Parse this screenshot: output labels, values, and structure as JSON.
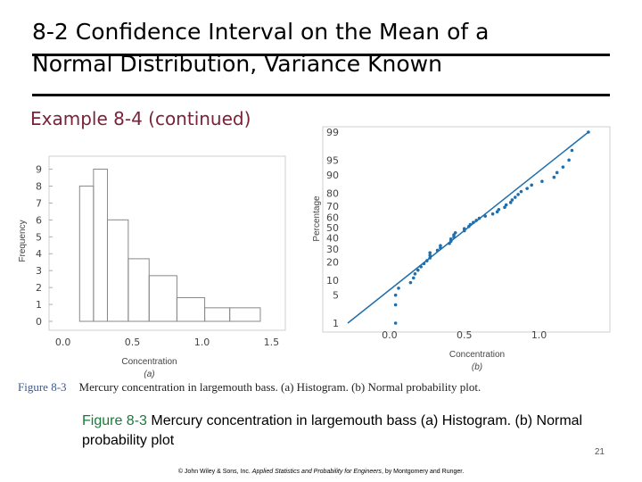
{
  "slide": {
    "title_line1": "8-2 Confidence Interval on the Mean of a",
    "title_line2": "Normal Distribution, Variance Known",
    "subtitle": "Example 8-4 (continued)",
    "figure_caption_label": "Figure 8-3",
    "figure_caption_text": "Mercury concentration in largemouth bass. (a) Histogram. (b) Normal probability plot.",
    "caption_label": "Figure 8-3",
    "caption_text": " Mercury concentration in largemouth bass (a) Histogram. (b) Normal probability plot",
    "page_number": "21",
    "footer_pre": "© John Wiley & Sons, Inc.  ",
    "footer_italic": "Applied Statistics and Probability for Engineers",
    "footer_post": ", by Montgomery and Runger."
  },
  "chart_data": [
    {
      "type": "bar",
      "xlabel": "Concentration",
      "ylabel": "Frequency",
      "sublabel": "(a)",
      "x_ticks": [
        "0.0",
        "0.5",
        "1.0",
        "1.5"
      ],
      "y_ticks": [
        "0",
        "1",
        "2",
        "3",
        "4",
        "5",
        "6",
        "7",
        "8",
        "9"
      ],
      "xlim": [
        -0.1,
        1.6
      ],
      "ylim": [
        0,
        9.5
      ],
      "bins": [
        {
          "x0": 0.12,
          "x1": 0.22,
          "value": 8
        },
        {
          "x0": 0.22,
          "x1": 0.32,
          "value": 9
        },
        {
          "x0": 0.32,
          "x1": 0.47,
          "value": 6
        },
        {
          "x0": 0.47,
          "x1": 0.62,
          "value": 3.7
        },
        {
          "x0": 0.62,
          "x1": 0.82,
          "value": 2.7
        },
        {
          "x0": 0.82,
          "x1": 1.02,
          "value": 1.4
        },
        {
          "x0": 1.02,
          "x1": 1.2,
          "value": 0.8
        },
        {
          "x0": 1.2,
          "x1": 1.42,
          "value": 0.8
        }
      ],
      "color": "#888888"
    },
    {
      "type": "scatter",
      "xlabel": "Concentration",
      "ylabel": "Percentage",
      "sublabel": "(b)",
      "x_ticks": [
        "0.0",
        "0.5",
        "1.0"
      ],
      "y_ticks": [
        "1",
        "5",
        "10",
        "20",
        "30",
        "40",
        "50",
        "60",
        "70",
        "80",
        "90",
        "95",
        "99"
      ],
      "xlim": [
        -0.28,
        1.45
      ],
      "points": [
        {
          "x": 0.04,
          "y": 1
        },
        {
          "x": 0.04,
          "y": 3
        },
        {
          "x": 0.04,
          "y": 5
        },
        {
          "x": 0.06,
          "y": 7
        },
        {
          "x": 0.14,
          "y": 9
        },
        {
          "x": 0.16,
          "y": 11
        },
        {
          "x": 0.17,
          "y": 13
        },
        {
          "x": 0.19,
          "y": 15
        },
        {
          "x": 0.21,
          "y": 17
        },
        {
          "x": 0.23,
          "y": 19
        },
        {
          "x": 0.25,
          "y": 21
        },
        {
          "x": 0.27,
          "y": 23
        },
        {
          "x": 0.27,
          "y": 25
        },
        {
          "x": 0.27,
          "y": 27
        },
        {
          "x": 0.32,
          "y": 29
        },
        {
          "x": 0.34,
          "y": 31
        },
        {
          "x": 0.34,
          "y": 33
        },
        {
          "x": 0.4,
          "y": 35
        },
        {
          "x": 0.41,
          "y": 37
        },
        {
          "x": 0.41,
          "y": 39
        },
        {
          "x": 0.43,
          "y": 41
        },
        {
          "x": 0.43,
          "y": 43
        },
        {
          "x": 0.44,
          "y": 45
        },
        {
          "x": 0.5,
          "y": 47
        },
        {
          "x": 0.5,
          "y": 49
        },
        {
          "x": 0.53,
          "y": 51
        },
        {
          "x": 0.54,
          "y": 53
        },
        {
          "x": 0.56,
          "y": 55
        },
        {
          "x": 0.58,
          "y": 57
        },
        {
          "x": 0.6,
          "y": 59
        },
        {
          "x": 0.64,
          "y": 61
        },
        {
          "x": 0.69,
          "y": 63
        },
        {
          "x": 0.72,
          "y": 65
        },
        {
          "x": 0.73,
          "y": 67
        },
        {
          "x": 0.77,
          "y": 69
        },
        {
          "x": 0.78,
          "y": 71
        },
        {
          "x": 0.81,
          "y": 73
        },
        {
          "x": 0.82,
          "y": 75
        },
        {
          "x": 0.84,
          "y": 77
        },
        {
          "x": 0.86,
          "y": 79
        },
        {
          "x": 0.88,
          "y": 81
        },
        {
          "x": 0.92,
          "y": 83
        },
        {
          "x": 0.95,
          "y": 85
        },
        {
          "x": 1.02,
          "y": 87
        },
        {
          "x": 1.1,
          "y": 89
        },
        {
          "x": 1.12,
          "y": 91
        },
        {
          "x": 1.16,
          "y": 93
        },
        {
          "x": 1.2,
          "y": 95
        },
        {
          "x": 1.22,
          "y": 97
        },
        {
          "x": 1.33,
          "y": 99
        }
      ],
      "fit_line": [
        {
          "x": -0.28,
          "y": 1
        },
        {
          "x": 1.33,
          "y": 99
        }
      ],
      "color": "#1f6fae"
    }
  ]
}
